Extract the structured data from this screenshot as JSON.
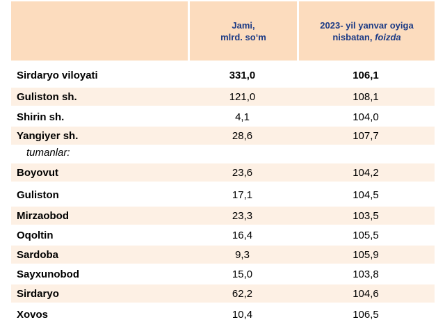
{
  "header": {
    "col1_line1": "Jami,",
    "col1_line2": "mlrd. so‘m",
    "col2_line1": "2023- yil yanvar oyiga",
    "col2_line2": "nisbatan,",
    "col2_line2_em": "foizda"
  },
  "rows": [
    {
      "name": "Sirdaryo viloyati",
      "total": "331,0",
      "percent": "106,1"
    },
    {
      "name": "Guliston  sh.",
      "total": "121,0",
      "percent": "108,1"
    },
    {
      "name": "Shirin sh.",
      "total": "4,1",
      "percent": "104,0"
    },
    {
      "name": "Yangiyer sh.",
      "total": "28,6",
      "percent": "107,7"
    },
    {
      "name": "Boyovut",
      "total": "23,6",
      "percent": "104,2"
    },
    {
      "name": "Guliston",
      "total": "17,1",
      "percent": "104,5"
    },
    {
      "name": "Mirzaobod",
      "total": "23,3",
      "percent": "103,5"
    },
    {
      "name": "Oqoltin",
      "total": "16,4",
      "percent": "105,5"
    },
    {
      "name": "Sardoba",
      "total": "9,3",
      "percent": "105,9"
    },
    {
      "name": "Sayxunobod",
      "total": "15,0",
      "percent": "103,8"
    },
    {
      "name": "Sirdaryo",
      "total": "62,2",
      "percent": "104,6"
    },
    {
      "name": "Xovos",
      "total": "10,4",
      "percent": "106,5"
    }
  ],
  "subheading": "tumanlar:",
  "colors": {
    "header_bg": "#fcdcbe",
    "row_shade": "#fdf0e4",
    "header_text": "#1b3a85"
  }
}
